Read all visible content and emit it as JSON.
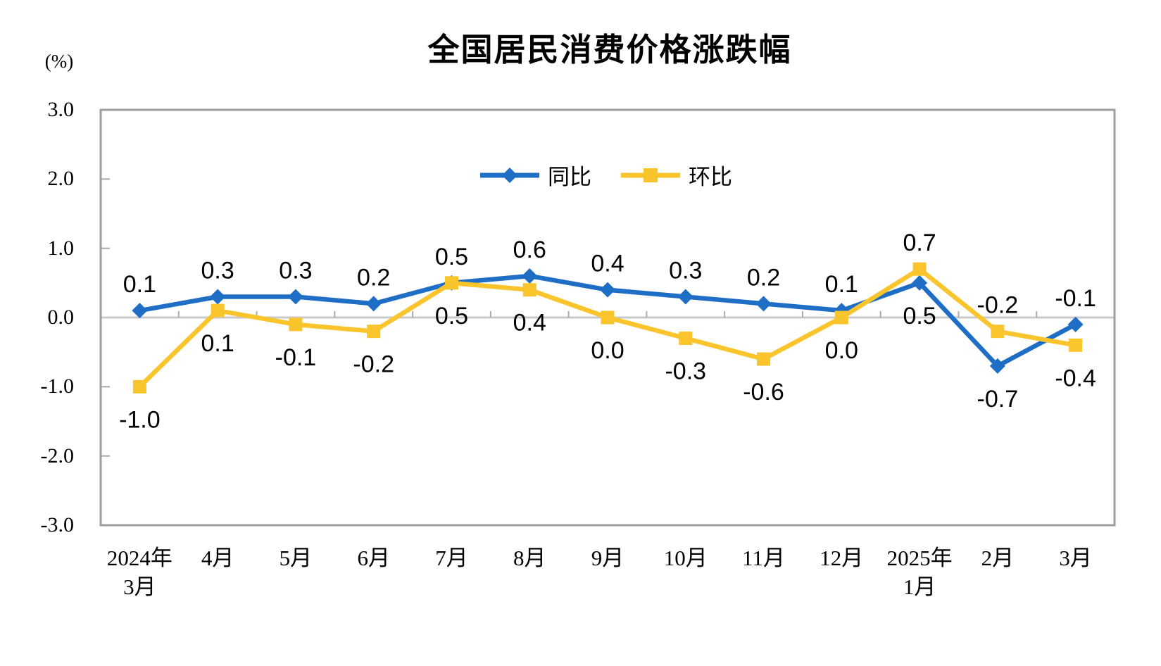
{
  "chart": {
    "title": "全国居民消费价格涨跌幅",
    "unit_label": "(%)"
  },
  "chart_data": {
    "type": "line",
    "title": "全国居民消费价格涨跌幅",
    "xlabel": "",
    "ylabel": "(%)",
    "ylim": [
      -3.0,
      3.0
    ],
    "y_tick_labels": [
      "3.0",
      "2.0",
      "1.0",
      "0.0",
      "-1.0",
      "-2.0",
      "-3.0"
    ],
    "y_tick_values": [
      3,
      2,
      1,
      0,
      -1,
      -2,
      -3
    ],
    "grid": "zero-baseline-only",
    "legend_position": "inside-top-center",
    "data_label_decimals": 1,
    "categories": [
      "2024年\n3月",
      "4月",
      "5月",
      "6月",
      "7月",
      "8月",
      "9月",
      "10月",
      "11月",
      "12月",
      "2025年\n1月",
      "2月",
      "3月"
    ],
    "series": [
      {
        "name": "同比",
        "marker": "diamond",
        "color": "#1E6EC6",
        "values": [
          0.1,
          0.3,
          0.3,
          0.2,
          0.5,
          0.6,
          0.4,
          0.3,
          0.2,
          0.1,
          0.5,
          -0.7,
          -0.1
        ]
      },
      {
        "name": "环比",
        "marker": "square",
        "color": "#FAC42C",
        "values": [
          -1.0,
          0.1,
          -0.1,
          -0.2,
          0.5,
          0.4,
          0.0,
          -0.3,
          -0.6,
          0.0,
          0.7,
          -0.2,
          -0.4
        ]
      }
    ]
  },
  "colors": {
    "background": "#FFFFFF",
    "plot_border": "#9E9E9E",
    "zero_line": "#C9C9C9",
    "tick": "#A6A6A6",
    "x_tick": "#ABABAB",
    "text": "#000000"
  }
}
